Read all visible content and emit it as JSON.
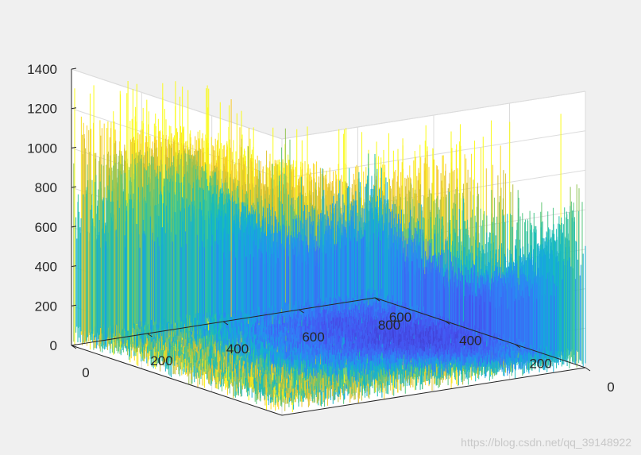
{
  "chart_data": {
    "type": "surface",
    "title": "",
    "xlabel": "",
    "ylabel": "",
    "zlabel": "",
    "x_ticks": [
      "0",
      "200",
      "400",
      "600",
      "800"
    ],
    "y_ticks": [
      "0",
      "200",
      "400",
      "600"
    ],
    "z_ticks": [
      "0",
      "200",
      "400",
      "600",
      "800",
      "1000",
      "1200",
      "1400"
    ],
    "xlim": [
      0,
      800
    ],
    "ylim": [
      0,
      600
    ],
    "zlim": [
      0,
      1400
    ],
    "grid": true,
    "colormap": "parula",
    "view": "3-D isometric view, x axis along right-front edge, y axis along left-front edge",
    "surface_description": "Noisy intensity surface: low values (~100-300) near the center around (x=600, y=300), rising toward the edges; ridge along x=0 edge peaks ~900-1000, far corner region near x=400-500 y=0 peaks ~1000-1200, max spikes up to ~1300",
    "surface_profile": {
      "center": [
        600,
        300
      ],
      "min_value": 150,
      "edge_values": {
        "y0_edge_peak_x": 450,
        "y0_edge_peak_value": 1100,
        "x0_edge_peak_value": 900,
        "x800_edge_value": 700,
        "y600_edge_value": 350
      },
      "max_spike": 1300
    }
  },
  "colors": {
    "background": "#f0f0f0",
    "plot_box": "#ffffff",
    "axis": "#262626",
    "grid": "#dcdcdc",
    "colormap_low": "#3e26a8",
    "colormap_mid": "#17beb8",
    "colormap_high": "#f9fb15"
  },
  "watermark": "https://blog.csdn.net/qq_39148922"
}
